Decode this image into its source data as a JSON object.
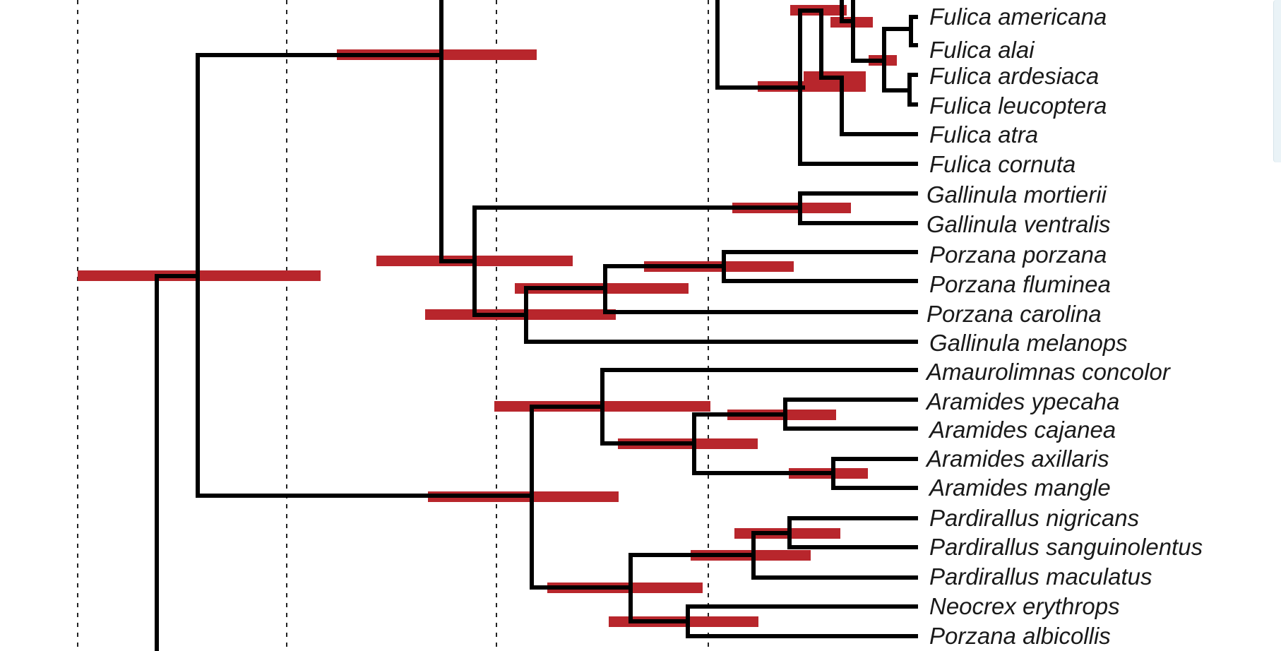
{
  "taxa": [
    "Fulica americana",
    "Fulica alai",
    "Fulica ardesiaca",
    "Fulica leucoptera",
    "Fulica atra",
    "Fulica cornuta",
    "Gallinula mortierii",
    "Gallinula ventralis",
    "Porzana porzana",
    "Porzana fluminea",
    "Porzana carolina",
    "Gallinula melanops",
    "Amaurolimnas concolor",
    "Aramides ypecaha",
    "Aramides cajanea",
    "Aramides axillaris",
    "Aramides mangle",
    "Pardirallus nigricans",
    "Pardirallus sanguinolentus",
    "Pardirallus maculatus",
    "Neocrex erythrops",
    "Porzana albicollis"
  ],
  "colors": {
    "branch": "#000000",
    "confidence_bar": "#b8262c",
    "grid": "#222222"
  }
}
